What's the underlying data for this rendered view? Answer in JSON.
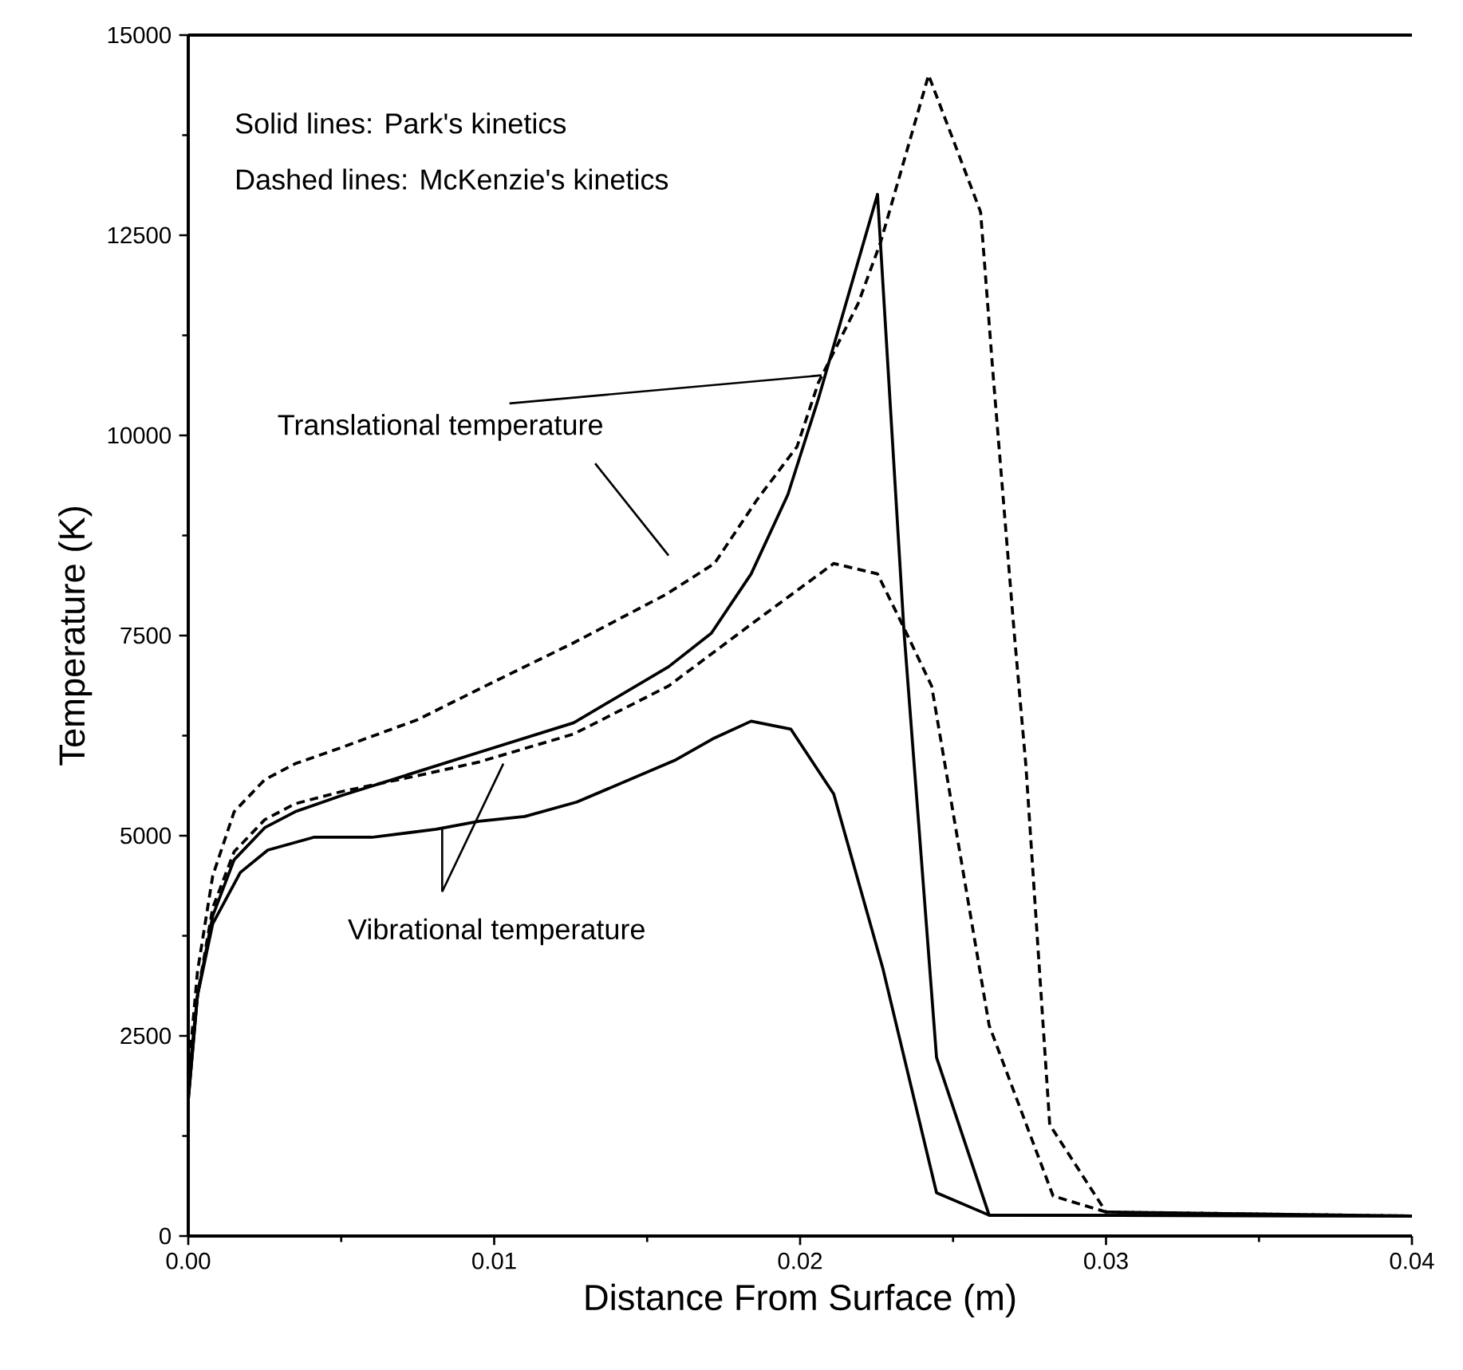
{
  "chart_data": {
    "type": "line",
    "xlabel": "Distance From Surface (m)",
    "ylabel": "Temperature (K)",
    "xlim": [
      0,
      0.04
    ],
    "ylim": [
      0,
      15000
    ],
    "xticks": [
      {
        "value": 0,
        "label": "0.00"
      },
      {
        "value": 0.01,
        "label": "0.01"
      },
      {
        "value": 0.02,
        "label": "0.02"
      },
      {
        "value": 0.03,
        "label": "0.03"
      },
      {
        "value": 0.04,
        "label": "0.04"
      }
    ],
    "yticks": [
      0,
      2500,
      5000,
      7500,
      10000,
      12500,
      15000
    ],
    "annotations": [
      "Solid lines: Park's kinetics",
      "Dashed lines: McKenzie's kinetics",
      {
        "text": "Translational temperature",
        "x": 0.0207,
        "y": 10750
      },
      {
        "text": "Vibrational temperature",
        "x": 0.0103,
        "y": 5900
      }
    ],
    "series": [
      {
        "color": "#000000",
        "line_style": "solid",
        "x": [
          0,
          0.0003,
          0.0008,
          0.0015,
          0.0025,
          0.0035,
          0.005,
          0.0075,
          0.0095,
          0.0126,
          0.0157,
          0.0171,
          0.0184,
          0.0196,
          0.0206,
          0.02253,
          0.0234,
          0.02446,
          0.02618,
          0.04
        ],
        "values": [
          1700,
          3000,
          4000,
          4700,
          5100,
          5300,
          5500,
          5800,
          6040,
          6410,
          7110,
          7530,
          8270,
          9260,
          10460,
          13010,
          7530,
          2230,
          260,
          250
        ]
      },
      {
        "color": "#000000",
        "line_style": "solid",
        "x": [
          0,
          0.0003,
          0.0008,
          0.0017,
          0.0026,
          0.0041,
          0.006,
          0.0081,
          0.0095,
          0.011,
          0.0127,
          0.0159,
          0.0172,
          0.0184,
          0.0197,
          0.0211,
          0.0227,
          0.02446,
          0.02618,
          0.04
        ],
        "values": [
          1700,
          3000,
          3900,
          4540,
          4820,
          4980,
          4980,
          5080,
          5180,
          5240,
          5420,
          5940,
          6220,
          6430,
          6330,
          5520,
          3350,
          540,
          260,
          250
        ]
      },
      {
        "color": "#000000",
        "line_style": "dashed",
        "x": [
          0,
          0.0003,
          0.0008,
          0.0015,
          0.0025,
          0.0035,
          0.005,
          0.0075,
          0.0095,
          0.0126,
          0.0156,
          0.0172,
          0.0186,
          0.0199,
          0.0206,
          0.0219,
          0.02263,
          0.0242,
          0.0259,
          0.0263,
          0.027,
          0.02738,
          0.02816,
          0.03,
          0.04
        ],
        "values": [
          2000,
          3300,
          4500,
          5300,
          5700,
          5900,
          6100,
          6450,
          6830,
          7410,
          8010,
          8400,
          9200,
          9860,
          10660,
          11650,
          12410,
          14500,
          12790,
          10800,
          7530,
          5880,
          1390,
          300,
          250
        ]
      },
      {
        "color": "#000000",
        "line_style": "dashed",
        "x": [
          0,
          0.0003,
          0.0008,
          0.0015,
          0.0025,
          0.0035,
          0.005,
          0.0075,
          0.0095,
          0.0126,
          0.0157,
          0.0185,
          0.0211,
          0.02253,
          0.0233,
          0.0243,
          0.02618,
          0.02827,
          0.03,
          0.04
        ],
        "values": [
          1900,
          3000,
          4100,
          4800,
          5200,
          5400,
          5550,
          5750,
          5920,
          6270,
          6870,
          7670,
          8400,
          8270,
          7670,
          6870,
          2630,
          500,
          300,
          250
        ]
      }
    ]
  }
}
